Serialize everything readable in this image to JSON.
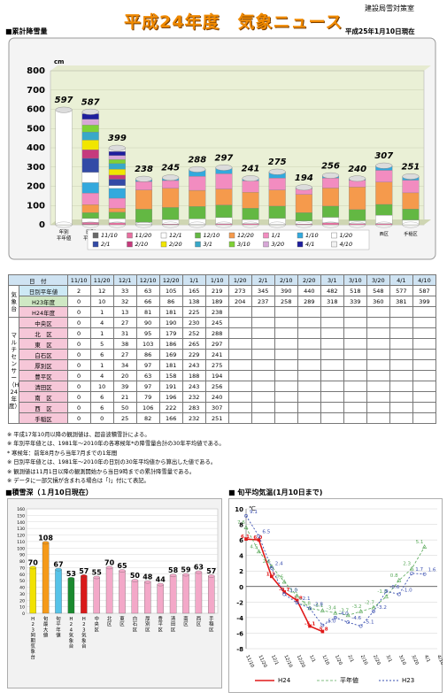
{
  "header": {
    "department": "建設局雪対策室",
    "title": "平成24年度　気象ニュース",
    "as_of": "平成25年1月10日現在"
  },
  "section_labels": {
    "cumulative": "■累計降雪量",
    "depth": "■積雪深（１月10日現在）",
    "temp": "■ 旬平均気温(1月10日まで)"
  },
  "colors": {
    "frame": "#bcbcbc",
    "plot_bg": "#eaf0d6"
  },
  "chart_data": [
    {
      "type": "bar",
      "title": "",
      "y_unit": "cm",
      "ylim": [
        0,
        800
      ],
      "yticks": [
        0,
        100,
        200,
        300,
        400,
        500,
        600,
        700,
        800
      ],
      "categories": [
        "年別平年値",
        "日別平年値",
        "H23気象台",
        "H24気象台",
        "中央区",
        "北区",
        "東区",
        "白石区",
        "厚別区",
        "豊平区",
        "清田区",
        "南区",
        "西区",
        "手稲区"
      ],
      "totals": [
        597,
        587,
        399,
        238,
        245,
        288,
        297,
        241,
        275,
        194,
        256,
        240,
        307,
        251
      ],
      "legend": [
        "11/10",
        "11/20",
        "12/1",
        "12/10",
        "12/20",
        "1/1",
        "1/10",
        "1/20",
        "2/1",
        "2/10",
        "2/20",
        "3/1",
        "3/10",
        "3/20",
        "4/1",
        "4/10"
      ],
      "legend_colors": [
        "#6a6a6a",
        "#e76fa0",
        "#ffffff",
        "#63b843",
        "#f59a4c",
        "#f28cc0",
        "#33a9dd",
        "#ffffff",
        "#334aa6",
        "#c63a7d",
        "#f1e600",
        "#38a8c8",
        "#7fd136",
        "#d7a7d7",
        "#1e1e9e",
        "#f2f2f2"
      ],
      "cumulative_series": {
        "年別平年値": [
          597
        ],
        "日別平年値": [
          2,
          12,
          33,
          63,
          105,
          165,
          219,
          273,
          345,
          390,
          440,
          482,
          518,
          548,
          577,
          587
        ],
        "H23気象台": [
          0,
          10,
          32,
          66,
          86,
          138,
          189,
          204,
          237,
          258,
          289,
          318,
          339,
          360,
          381,
          399
        ],
        "H24気象台": [
          0,
          1,
          13,
          81,
          181,
          225,
          238
        ],
        "中央区": [
          0,
          4,
          27,
          90,
          190,
          230,
          245
        ],
        "北区": [
          0,
          1,
          31,
          95,
          179,
          252,
          288
        ],
        "東区": [
          0,
          5,
          38,
          103,
          186,
          265,
          297
        ],
        "白石区": [
          0,
          6,
          27,
          86,
          169,
          229,
          241
        ],
        "厚別区": [
          0,
          1,
          34,
          97,
          181,
          243,
          275
        ],
        "豊平区": [
          0,
          4,
          20,
          63,
          158,
          188,
          194
        ],
        "清田区": [
          0,
          10,
          39,
          97,
          191,
          243,
          256
        ],
        "南区": [
          0,
          6,
          21,
          79,
          196,
          232,
          240
        ],
        "西区": [
          0,
          6,
          50,
          106,
          222,
          283,
          307
        ],
        "手稲区": [
          0,
          0,
          25,
          82,
          166,
          232,
          251
        ]
      }
    },
    {
      "type": "bar",
      "title": "",
      "ylim": [
        0,
        160
      ],
      "yticks": [
        0,
        10,
        20,
        30,
        40,
        50,
        60,
        70,
        80,
        90,
        100,
        110,
        120,
        130,
        140,
        150,
        160
      ],
      "categories": [
        "H23同期気象台",
        "旬最大値",
        "旬平年値",
        "H24気象台",
        "H23気象台",
        "中央区",
        "北区",
        "東区",
        "白石区",
        "厚別区",
        "豊平区",
        "清田区",
        "南区",
        "西区",
        "手稲区"
      ],
      "values": [
        70,
        108,
        67,
        53,
        57,
        55,
        70,
        65,
        50,
        48,
        44,
        58,
        59,
        63,
        57
      ],
      "bar_colors": [
        "#f2e200",
        "#f59a1a",
        "#56c3e8",
        "#1b8a2f",
        "#d91a1a",
        "#f3a8c8",
        "#f3a8c8",
        "#f3a8c8",
        "#f3a8c8",
        "#f3a8c8",
        "#f3a8c8",
        "#f3a8c8",
        "#f3a8c8",
        "#f3a8c8",
        "#f3a8c8"
      ]
    },
    {
      "type": "line",
      "title": "",
      "y_unit": "℃",
      "ylim": [
        -8,
        10
      ],
      "yticks": [
        -8,
        -6,
        -4,
        -2,
        0,
        2,
        4,
        6,
        8,
        10
      ],
      "x": [
        "11/10",
        "11/20",
        "12/1",
        "12/10",
        "12/20",
        "1/1",
        "1/10",
        "1/20",
        "2/1",
        "2/10",
        "2/20",
        "3/1",
        "3/10",
        "3/20",
        "4/1",
        "4/10"
      ],
      "series": [
        {
          "name": "H24",
          "color": "#e01818",
          "values": [
            6.1,
            6.0,
            1.3,
            -0.7,
            -1.8,
            -5.1,
            -5.8,
            null,
            null,
            null,
            null,
            null,
            null,
            null,
            null,
            null
          ]
        },
        {
          "name": "平年値",
          "color": "#58a858",
          "values": [
            7.6,
            4.5,
            2.6,
            0.6,
            -1.2,
            -2.8,
            -3.1,
            -3.4,
            -3.7,
            -3.2,
            -2.7,
            -1.3,
            0.8,
            2.3,
            5.1,
            null
          ]
        },
        {
          "name": "H23",
          "color": "#3a4fb0",
          "values": [
            9.1,
            6.5,
            2.4,
            -1.0,
            -2.1,
            -2.8,
            -5.0,
            -4.0,
            -4.6,
            -5.1,
            -3.2,
            -0.6,
            -1.0,
            1.7,
            1.6,
            null
          ]
        }
      ]
    }
  ],
  "table": {
    "header_label": "日　付",
    "dates": [
      "11/10",
      "11/20",
      "12/1",
      "12/10",
      "12/20",
      "1/1",
      "1/10",
      "1/20",
      "2/1",
      "2/10",
      "2/20",
      "3/1",
      "3/10",
      "3/20",
      "4/1",
      "4/10"
    ],
    "group1_label": "気象台",
    "group2_label": "マルチセンサー（H24年度）",
    "rows": [
      {
        "name": "日別平年値",
        "values": [
          "2",
          "12",
          "33",
          "63",
          "105",
          "165",
          "219",
          "273",
          "345",
          "390",
          "440",
          "482",
          "518",
          "548",
          "577",
          "587"
        ]
      },
      {
        "name": "H23年度",
        "values": [
          "0",
          "10",
          "32",
          "66",
          "86",
          "138",
          "189",
          "204",
          "237",
          "258",
          "289",
          "318",
          "339",
          "360",
          "381",
          "399"
        ]
      },
      {
        "name": "H24年度",
        "values": [
          "0",
          "1",
          "13",
          "81",
          "181",
          "225",
          "238",
          "",
          "",
          "",
          "",
          "",
          "",
          "",
          "",
          ""
        ]
      },
      {
        "name": "中央区",
        "values": [
          "0",
          "4",
          "27",
          "90",
          "190",
          "230",
          "245",
          "",
          "",
          "",
          "",
          "",
          "",
          "",
          "",
          ""
        ]
      },
      {
        "name": "北　区",
        "values": [
          "0",
          "1",
          "31",
          "95",
          "179",
          "252",
          "288",
          "",
          "",
          "",
          "",
          "",
          "",
          "",
          "",
          ""
        ]
      },
      {
        "name": "東　区",
        "values": [
          "0",
          "5",
          "38",
          "103",
          "186",
          "265",
          "297",
          "",
          "",
          "",
          "",
          "",
          "",
          "",
          "",
          ""
        ]
      },
      {
        "name": "白石区",
        "values": [
          "0",
          "6",
          "27",
          "86",
          "169",
          "229",
          "241",
          "",
          "",
          "",
          "",
          "",
          "",
          "",
          "",
          ""
        ]
      },
      {
        "name": "厚別区",
        "values": [
          "0",
          "1",
          "34",
          "97",
          "181",
          "243",
          "275",
          "",
          "",
          "",
          "",
          "",
          "",
          "",
          "",
          ""
        ]
      },
      {
        "name": "豊平区",
        "values": [
          "0",
          "4",
          "20",
          "63",
          "158",
          "188",
          "194",
          "",
          "",
          "",
          "",
          "",
          "",
          "",
          "",
          ""
        ]
      },
      {
        "name": "清田区",
        "values": [
          "0",
          "10",
          "39",
          "97",
          "191",
          "243",
          "256",
          "",
          "",
          "",
          "",
          "",
          "",
          "",
          "",
          ""
        ]
      },
      {
        "name": "南　区",
        "values": [
          "0",
          "6",
          "21",
          "79",
          "196",
          "232",
          "240",
          "",
          "",
          "",
          "",
          "",
          "",
          "",
          "",
          ""
        ]
      },
      {
        "name": "西　区",
        "values": [
          "0",
          "6",
          "50",
          "106",
          "222",
          "283",
          "307",
          "",
          "",
          "",
          "",
          "",
          "",
          "",
          "",
          ""
        ]
      },
      {
        "name": "手稲区",
        "values": [
          "0",
          "0",
          "25",
          "82",
          "166",
          "232",
          "251",
          "",
          "",
          "",
          "",
          "",
          "",
          "",
          "",
          ""
        ]
      }
    ]
  },
  "notes": [
    "※  平成17年10月以降の観測値は、超音波積雪計による。",
    "※  年別平年値とは、1981年～2010年の各寒候年*の降雪量合計の30年平均値である。",
    "     *  寒候年：前年8月から当年7月までの1年間",
    "※  日別平年値とは、1981年～2010年の日別の30年平均値から算出した値である。",
    "※  観測値は11月1日以降の観測開始から当日9時までの累計降雪量である。",
    "※  データに一部欠損が含まれる場合は「)」付にて表記。"
  ]
}
